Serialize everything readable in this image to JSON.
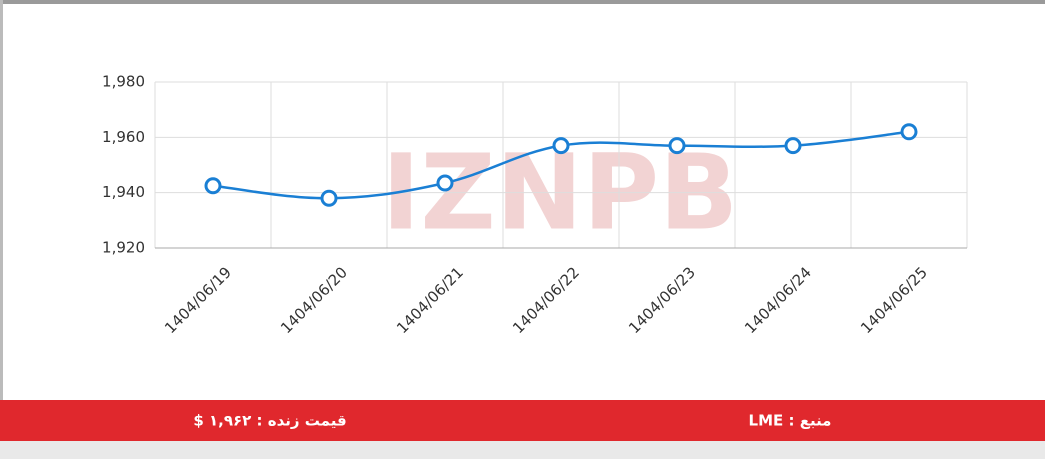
{
  "chart_data": {
    "type": "line",
    "watermark": "IZNPB",
    "categories": [
      "1404/06/19",
      "1404/06/20",
      "1404/06/21",
      "1404/06/22",
      "1404/06/23",
      "1404/06/24",
      "1404/06/25"
    ],
    "series": [
      {
        "color": "#1a7fd4",
        "values": [
          1942.5,
          1938,
          1943.5,
          1957,
          1957,
          1957,
          1962
        ]
      }
    ],
    "ylim": [
      1920,
      1980
    ],
    "yticks": [
      {
        "value": 1920,
        "label": "1,920"
      },
      {
        "value": 1940,
        "label": "1,940"
      },
      {
        "value": 1960,
        "label": "1,960"
      },
      {
        "value": 1980,
        "label": "1,980"
      }
    ],
    "grid": true
  },
  "footer": {
    "live_price": "قیمت زنده : ۱,۹۶۲ $",
    "source": "منبع : LME"
  }
}
